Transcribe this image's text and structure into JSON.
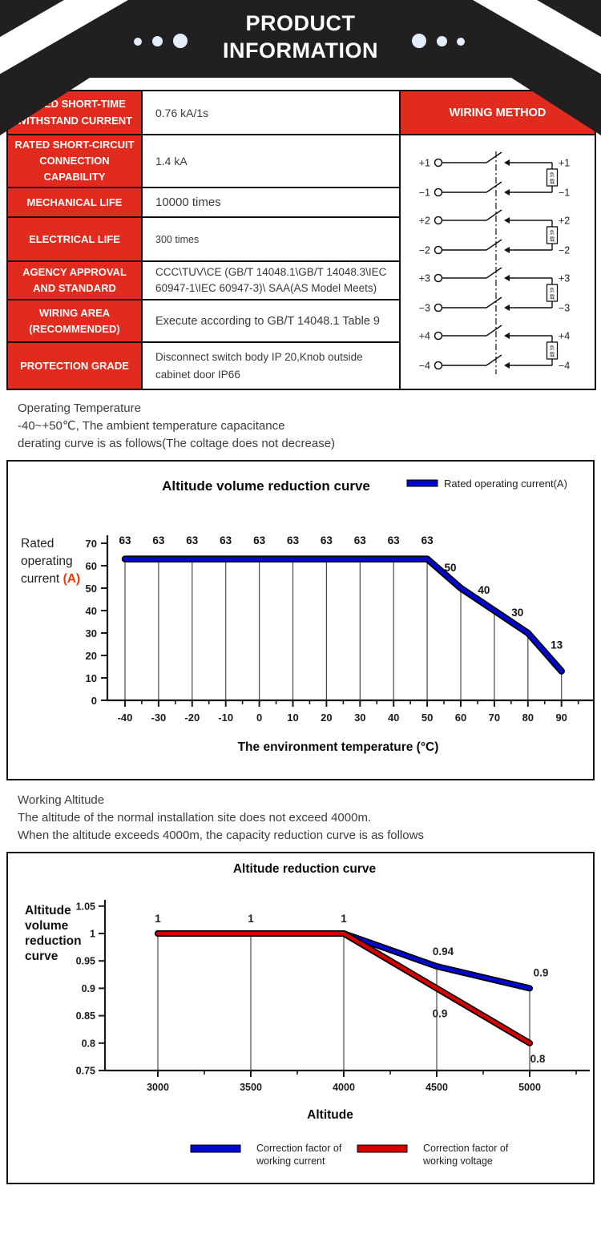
{
  "header": {
    "title_line1": "PRODUCT",
    "title_line2": "INFORMATION"
  },
  "spec_table": {
    "rows": [
      {
        "label": "RATED SHORT-TIME WITHSTAND CURRENT",
        "value": "0.76 kA/1s"
      },
      {
        "label": "RATED SHORT-CIRCUIT CONNECTION CAPABILITY",
        "value": "1.4 kA"
      },
      {
        "label": "MECHANICAL LIFE",
        "value": "10000 times"
      },
      {
        "label": "ELECTRICAL LIFE",
        "value": "300 times"
      },
      {
        "label": "AGENCY APPROVAL AND STANDARD",
        "value": "CCC\\TUV\\CE (GB/T 14048.1\\GB/T 14048.3\\IEC 60947-1\\IEC 60947-3)\\ SAA(AS Model Meets)"
      },
      {
        "label": "WIRING AREA (RECOMMENDED)",
        "value": "Execute according to GB/T 14048.1 Table 9"
      },
      {
        "label": "PROTECTION GRADE",
        "value": "Disconnect switch body IP 20,Knob outside cabinet door IP66"
      }
    ],
    "wiring_header": "WIRING METHOD",
    "wiring": {
      "load_label": "负载",
      "pairs": [
        {
          "plus": "+1",
          "minus": "−1"
        },
        {
          "plus": "+2",
          "minus": "−2"
        },
        {
          "plus": "+3",
          "minus": "−3"
        },
        {
          "plus": "+4",
          "minus": "−4"
        }
      ]
    }
  },
  "paragraphs": {
    "operating_temperature": [
      "Operating Temperature",
      " -40~+50℃, The ambient temperature capacitance",
      "derating curve is as follows(The coltage does not decrease)"
    ],
    "working_altitude": [
      "Working Altitude",
      "The altitude of the normal installation site does not exceed 4000m.",
      "When the altitude exceeds 4000m, the capacity reduction curve is as follows"
    ]
  },
  "chart_data": [
    {
      "type": "line",
      "title": "Altitude volume reduction curve",
      "legend_label": "Rated operating current(A)",
      "legend_position": "top-right",
      "grid": "vertical-only",
      "xlabel": "The environment temperature (°C)",
      "ylabel": "Rated operating current (A)",
      "ylabel_lines": [
        "Rated",
        "operating",
        "current (A)"
      ],
      "x": [
        -40,
        -30,
        -20,
        -10,
        0,
        10,
        20,
        30,
        40,
        50,
        60,
        70,
        80,
        90
      ],
      "y": [
        63,
        63,
        63,
        63,
        63,
        63,
        63,
        63,
        63,
        63,
        50,
        40,
        30,
        13
      ],
      "point_labels": [
        "63",
        "63",
        "63",
        "63",
        "63",
        "63",
        "63",
        "63",
        "63",
        "63",
        "50",
        "40",
        "30",
        "13"
      ],
      "yticks": [
        0,
        10,
        20,
        30,
        40,
        50,
        60,
        70
      ],
      "ylim": [
        0,
        70
      ],
      "line_color": "#0008cf"
    },
    {
      "type": "line",
      "title": "Altitude reduction curve",
      "xlabel": "Altitude",
      "ylabel": "Altitude volume reduction curve",
      "ylabel_lines": [
        "Altitude",
        "volume",
        "reduction",
        "curve"
      ],
      "x": [
        3000,
        3500,
        4000,
        4500,
        5000
      ],
      "series": [
        {
          "name": "Correction factor of working current",
          "color": "#0008cf",
          "values": [
            1,
            1,
            1,
            0.94,
            0.9
          ],
          "point_labels": [
            null,
            null,
            null,
            "0.94",
            "0.9"
          ]
        },
        {
          "name": "Correction factor of working voltage",
          "color": "#d40000",
          "values": [
            1,
            1,
            1,
            0.9,
            0.8
          ],
          "point_labels": [
            null,
            null,
            null,
            "0.9",
            "0.8"
          ]
        }
      ],
      "top_labels": [
        "1",
        "1",
        "1"
      ],
      "yticks_display": [
        "1.05",
        "1",
        "0.95",
        "0.9",
        "0.85",
        "0.8",
        "0.75"
      ],
      "ylim": [
        0.75,
        1.05
      ],
      "legend_position": "bottom",
      "grid": "vertical-only"
    }
  ],
  "colors": {
    "accent_red": "#e02b1e",
    "header_black": "#221f20",
    "line_blue": "#0008cf",
    "line_red": "#d40000",
    "unit_orange": "#e8380d"
  }
}
